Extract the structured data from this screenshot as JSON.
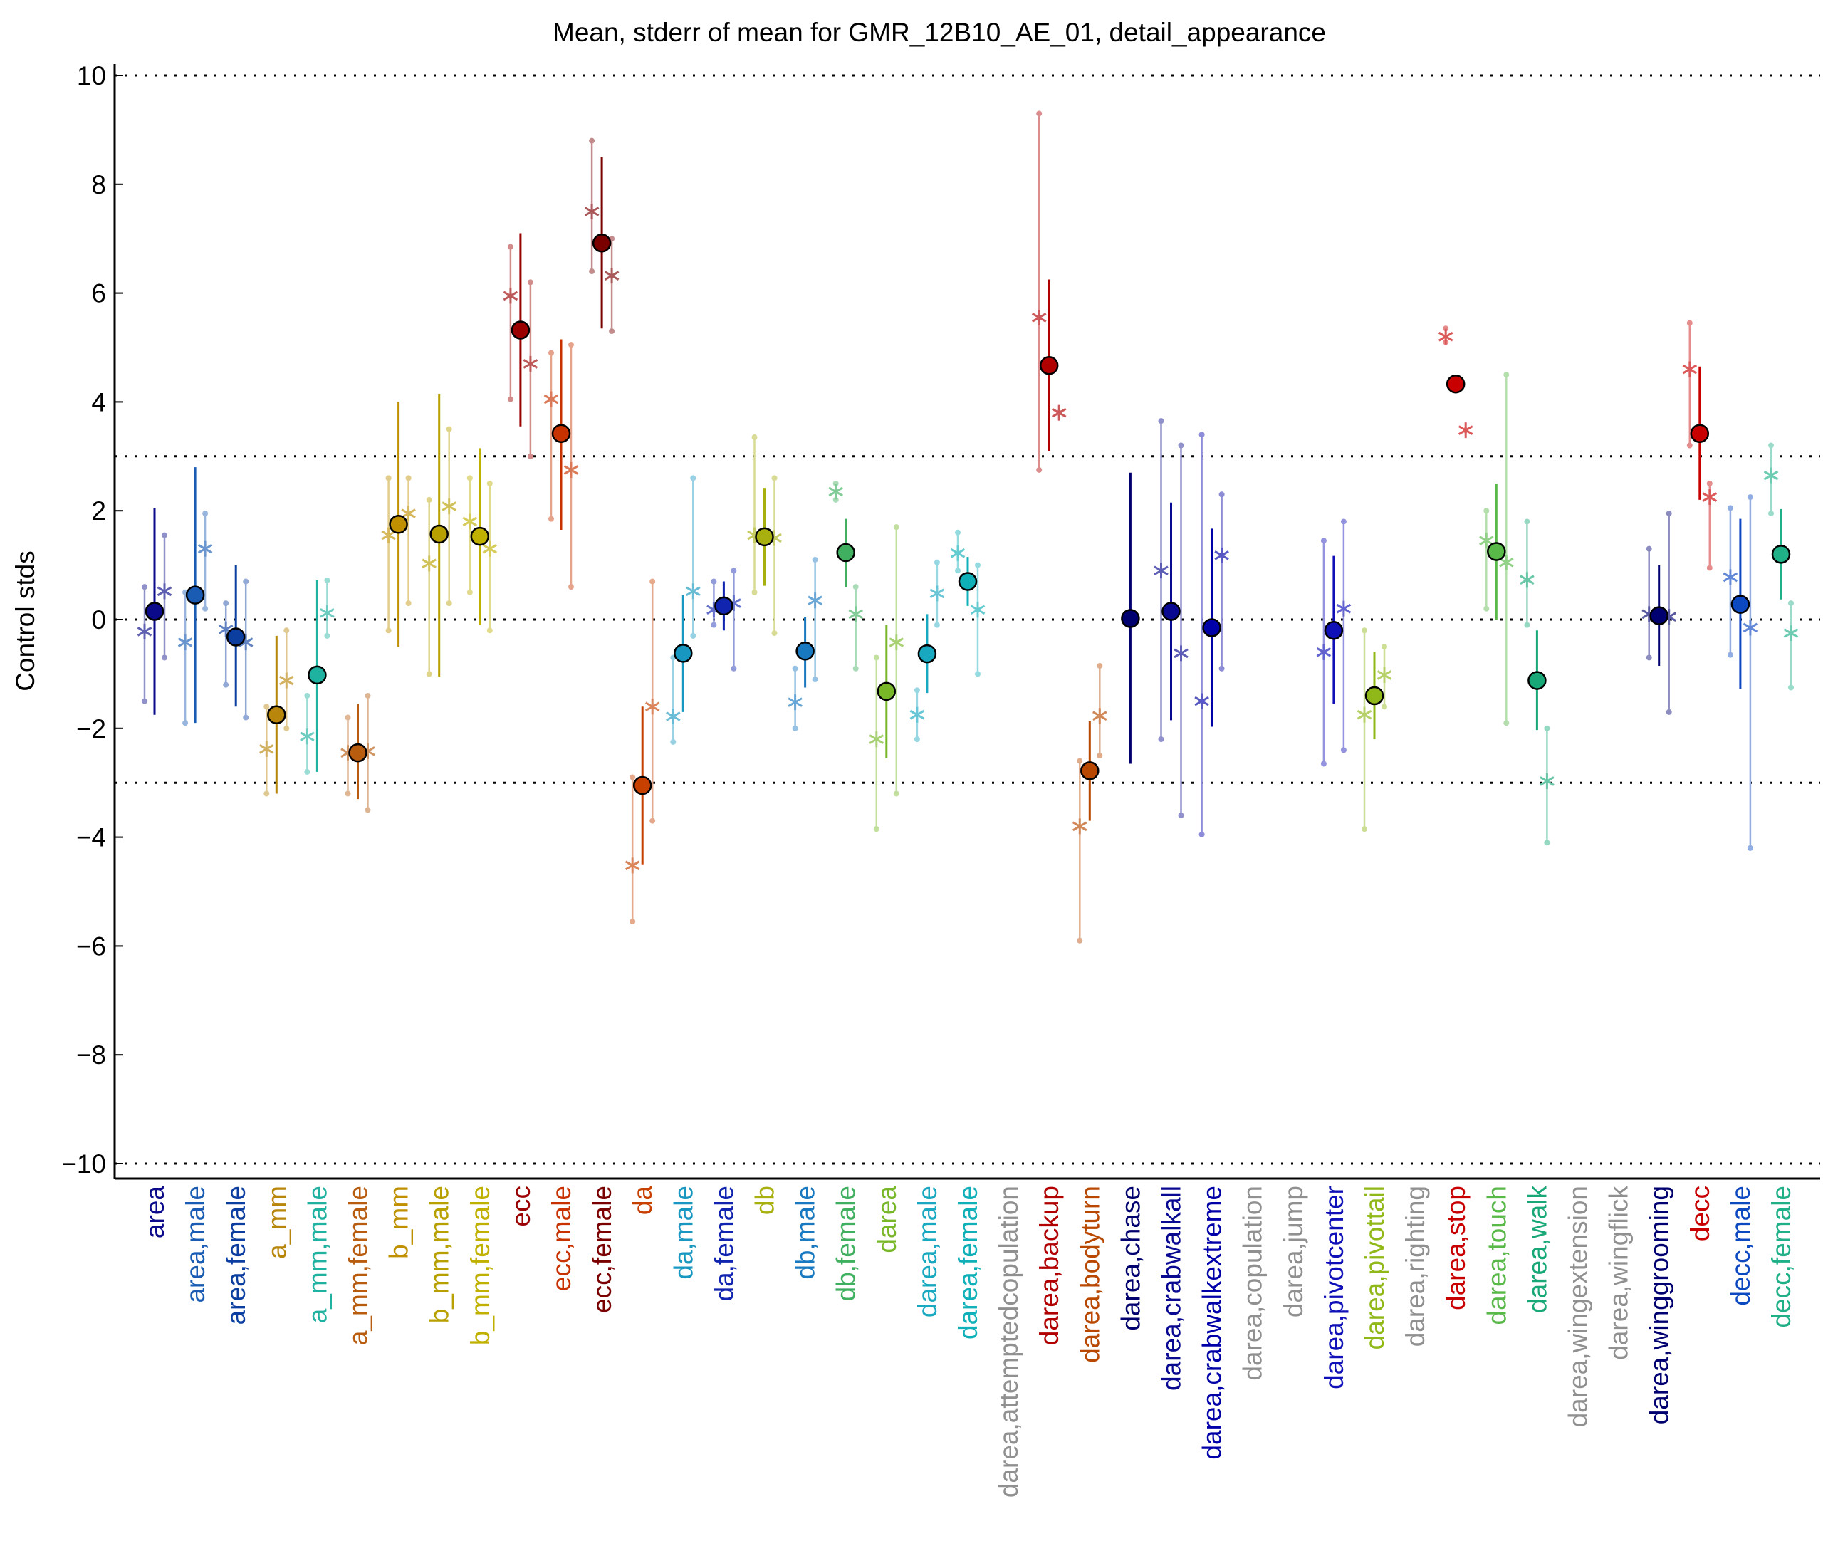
{
  "chart_data": {
    "type": "scatter",
    "title": "Mean, stderr of mean for GMR_12B10_AE_01, detail_appearance",
    "ylabel": "Control stds",
    "xlabel": "",
    "ylim": [
      -10.3,
      10.3
    ],
    "yticks": [
      10,
      8,
      6,
      4,
      2,
      0,
      -2,
      -4,
      -6,
      -8,
      -10
    ],
    "ytick_labels": [
      "10",
      "8",
      "6",
      "4",
      "2",
      "0",
      "−2",
      "−4",
      "−6",
      "−8",
      "−10"
    ],
    "reference_lines": [
      10,
      3,
      0,
      -3,
      -10
    ],
    "grid": false,
    "categories": [
      {
        "label": "area",
        "color": "#0a0a8a",
        "mean": 0.15,
        "lo": -1.75,
        "hi": 2.05,
        "subs": [
          {
            "v": -0.22,
            "lo": -1.5,
            "hi": 0.6
          },
          {
            "v": 0.52,
            "lo": -0.7,
            "hi": 1.55
          }
        ]
      },
      {
        "label": "area,male",
        "color": "#1a5cb4",
        "mean": 0.45,
        "lo": -1.9,
        "hi": 2.8,
        "subs": [
          {
            "v": -0.42,
            "lo": -1.9,
            "hi": 0.5
          },
          {
            "v": 1.3,
            "lo": 0.2,
            "hi": 1.95
          }
        ]
      },
      {
        "label": "area,female",
        "color": "#0c3ea0",
        "mean": -0.32,
        "lo": -1.6,
        "hi": 1.0,
        "subs": [
          {
            "v": -0.18,
            "lo": -1.2,
            "hi": 0.3
          },
          {
            "v": -0.42,
            "lo": -1.8,
            "hi": 0.7
          }
        ]
      },
      {
        "label": "a_mm",
        "color": "#b8860b",
        "mean": -1.75,
        "lo": -3.2,
        "hi": -0.3,
        "subs": [
          {
            "v": -2.38,
            "lo": -3.2,
            "hi": -1.6
          },
          {
            "v": -1.12,
            "lo": -2.0,
            "hi": -0.2
          }
        ]
      },
      {
        "label": "a_mm,male",
        "color": "#20b2a0",
        "mean": -1.02,
        "lo": -2.8,
        "hi": 0.72,
        "subs": [
          {
            "v": -2.15,
            "lo": -2.8,
            "hi": -1.4
          },
          {
            "v": 0.12,
            "lo": -0.3,
            "hi": 0.72
          }
        ]
      },
      {
        "label": "a_mm,female",
        "color": "#b85c10",
        "mean": -2.45,
        "lo": -3.3,
        "hi": -1.55,
        "subs": [
          {
            "v": -2.45,
            "lo": -3.2,
            "hi": -1.8
          },
          {
            "v": -2.42,
            "lo": -3.5,
            "hi": -1.4
          }
        ]
      },
      {
        "label": "b_mm",
        "color": "#c09000",
        "mean": 1.75,
        "lo": -0.5,
        "hi": 4.0,
        "subs": [
          {
            "v": 1.55,
            "lo": -0.2,
            "hi": 2.6
          },
          {
            "v": 1.95,
            "lo": 0.3,
            "hi": 2.6
          }
        ]
      },
      {
        "label": "b_mm,male",
        "color": "#b8a000",
        "mean": 1.57,
        "lo": -1.05,
        "hi": 4.15,
        "subs": [
          {
            "v": 1.03,
            "lo": -1.0,
            "hi": 2.2
          },
          {
            "v": 2.08,
            "lo": 0.3,
            "hi": 3.5
          }
        ]
      },
      {
        "label": "b_mm,female",
        "color": "#c0b000",
        "mean": 1.53,
        "lo": -0.1,
        "hi": 3.15,
        "subs": [
          {
            "v": 1.8,
            "lo": 0.5,
            "hi": 2.6
          },
          {
            "v": 1.3,
            "lo": -0.2,
            "hi": 2.5
          }
        ]
      },
      {
        "label": "ecc",
        "color": "#9a0000",
        "mean": 5.32,
        "lo": 3.55,
        "hi": 7.1,
        "subs": [
          {
            "v": 5.95,
            "lo": 4.05,
            "hi": 6.85
          },
          {
            "v": 4.7,
            "lo": 3.0,
            "hi": 6.2
          }
        ]
      },
      {
        "label": "ecc,male",
        "color": "#c83200",
        "mean": 3.42,
        "lo": 1.65,
        "hi": 5.15,
        "subs": [
          {
            "v": 4.05,
            "lo": 1.85,
            "hi": 4.9
          },
          {
            "v": 2.75,
            "lo": 0.6,
            "hi": 5.05
          }
        ]
      },
      {
        "label": "ecc,female",
        "color": "#7a0000",
        "mean": 6.92,
        "lo": 5.35,
        "hi": 8.5,
        "subs": [
          {
            "v": 7.5,
            "lo": 6.4,
            "hi": 8.8
          },
          {
            "v": 6.32,
            "lo": 5.3,
            "hi": 7.0
          }
        ]
      },
      {
        "label": "da",
        "color": "#c84000",
        "mean": -3.05,
        "lo": -4.5,
        "hi": -1.6,
        "subs": [
          {
            "v": -4.52,
            "lo": -5.55,
            "hi": -2.9
          },
          {
            "v": -1.6,
            "lo": -3.7,
            "hi": 0.7
          }
        ]
      },
      {
        "label": "da,male",
        "color": "#1898c0",
        "mean": -0.62,
        "lo": -1.7,
        "hi": 0.45,
        "subs": [
          {
            "v": -1.78,
            "lo": -2.25,
            "hi": -0.7
          },
          {
            "v": 0.52,
            "lo": -0.3,
            "hi": 2.6
          }
        ]
      },
      {
        "label": "da,female",
        "color": "#1024b0",
        "mean": 0.25,
        "lo": -0.2,
        "hi": 0.7,
        "subs": [
          {
            "v": 0.18,
            "lo": -0.1,
            "hi": 0.7
          },
          {
            "v": 0.3,
            "lo": -0.9,
            "hi": 0.9
          }
        ]
      },
      {
        "label": "db",
        "color": "#a8b010",
        "mean": 1.52,
        "lo": 0.62,
        "hi": 2.42,
        "subs": [
          {
            "v": 1.55,
            "lo": 0.5,
            "hi": 3.35
          },
          {
            "v": 1.5,
            "lo": -0.25,
            "hi": 2.6
          }
        ]
      },
      {
        "label": "db,male",
        "color": "#1878c0",
        "mean": -0.58,
        "lo": -1.25,
        "hi": 0.05,
        "subs": [
          {
            "v": -1.52,
            "lo": -2.0,
            "hi": -0.9
          },
          {
            "v": 0.35,
            "lo": -1.1,
            "hi": 1.1
          }
        ]
      },
      {
        "label": "db,female",
        "color": "#40b060",
        "mean": 1.23,
        "lo": 0.6,
        "hi": 1.85,
        "subs": [
          {
            "v": 2.35,
            "lo": 2.2,
            "hi": 2.5
          },
          {
            "v": 0.1,
            "lo": -0.9,
            "hi": 0.6
          }
        ]
      },
      {
        "label": "darea",
        "color": "#78b828",
        "mean": -1.32,
        "lo": -2.55,
        "hi": -0.1,
        "subs": [
          {
            "v": -2.2,
            "lo": -3.85,
            "hi": -0.7
          },
          {
            "v": -0.42,
            "lo": -3.2,
            "hi": 1.7
          }
        ]
      },
      {
        "label": "darea,male",
        "color": "#18a8c0",
        "mean": -0.63,
        "lo": -1.35,
        "hi": 0.1,
        "subs": [
          {
            "v": -1.75,
            "lo": -2.2,
            "hi": -1.3
          },
          {
            "v": 0.48,
            "lo": -0.1,
            "hi": 1.05
          }
        ]
      },
      {
        "label": "darea,female",
        "color": "#10b0b8",
        "mean": 0.7,
        "lo": 0.25,
        "hi": 1.15,
        "subs": [
          {
            "v": 1.22,
            "lo": 0.9,
            "hi": 1.6
          },
          {
            "v": 0.18,
            "lo": -1.0,
            "hi": 1.0
          }
        ]
      },
      {
        "label": "darea,attemptedcopulation",
        "color": "#909090",
        "mean": null,
        "lo": null,
        "hi": null,
        "subs": []
      },
      {
        "label": "darea,backup",
        "color": "#b00000",
        "mean": 4.67,
        "lo": 3.1,
        "hi": 6.25,
        "subs": [
          {
            "v": 5.55,
            "lo": 2.75,
            "hi": 9.3
          },
          {
            "v": 3.8,
            "lo": 3.8,
            "hi": 3.8
          }
        ]
      },
      {
        "label": "darea,bodyturn",
        "color": "#b84800",
        "mean": -2.78,
        "lo": -3.7,
        "hi": -1.87,
        "subs": [
          {
            "v": -3.8,
            "lo": -5.9,
            "hi": -2.6
          },
          {
            "v": -1.77,
            "lo": -2.5,
            "hi": -0.85
          }
        ]
      },
      {
        "label": "darea,chase",
        "color": "#00006e",
        "mean": 0.02,
        "lo": -2.65,
        "hi": 2.7,
        "subs": []
      },
      {
        "label": "darea,crabwalkall",
        "color": "#080890",
        "mean": 0.15,
        "lo": -1.85,
        "hi": 2.15,
        "subs": [
          {
            "v": 0.9,
            "lo": -2.2,
            "hi": 3.65
          },
          {
            "v": -0.62,
            "lo": -3.6,
            "hi": 3.2
          }
        ]
      },
      {
        "label": "darea,crabwalkextreme",
        "color": "#0000a8",
        "mean": -0.15,
        "lo": -1.97,
        "hi": 1.67,
        "subs": [
          {
            "v": -1.5,
            "lo": -3.95,
            "hi": 3.4
          },
          {
            "v": 1.18,
            "lo": -0.9,
            "hi": 2.3
          }
        ]
      },
      {
        "label": "darea,copulation",
        "color": "#909090",
        "mean": null,
        "lo": null,
        "hi": null,
        "subs": []
      },
      {
        "label": "darea,jump",
        "color": "#909090",
        "mean": null,
        "lo": null,
        "hi": null,
        "subs": []
      },
      {
        "label": "darea,pivotcenter",
        "color": "#1010b8",
        "mean": -0.2,
        "lo": -1.55,
        "hi": 1.17,
        "subs": [
          {
            "v": -0.6,
            "lo": -2.65,
            "hi": 1.45
          },
          {
            "v": 0.2,
            "lo": -2.4,
            "hi": 1.8
          }
        ]
      },
      {
        "label": "darea,pivottail",
        "color": "#90b818",
        "mean": -1.4,
        "lo": -2.2,
        "hi": -0.6,
        "subs": [
          {
            "v": -1.75,
            "lo": -3.85,
            "hi": -0.2
          },
          {
            "v": -1.02,
            "lo": -1.6,
            "hi": -0.5
          }
        ]
      },
      {
        "label": "darea,righting",
        "color": "#909090",
        "mean": null,
        "lo": null,
        "hi": null,
        "subs": []
      },
      {
        "label": "darea,stop",
        "color": "#c80000",
        "mean": 4.33,
        "lo": 4.33,
        "hi": 4.33,
        "subs": [
          {
            "v": 5.2,
            "lo": 5.1,
            "hi": 5.35
          },
          {
            "v": 3.48,
            "lo": 3.48,
            "hi": 3.48
          }
        ]
      },
      {
        "label": "darea,touch",
        "color": "#58b848",
        "mean": 1.25,
        "lo": 0.0,
        "hi": 2.5,
        "subs": [
          {
            "v": 1.45,
            "lo": 0.2,
            "hi": 2.0
          },
          {
            "v": 1.05,
            "lo": -1.9,
            "hi": 4.5
          }
        ]
      },
      {
        "label": "darea,walk",
        "color": "#18a878",
        "mean": -1.12,
        "lo": -2.03,
        "hi": -0.2,
        "subs": [
          {
            "v": 0.73,
            "lo": -0.1,
            "hi": 1.8
          },
          {
            "v": -2.97,
            "lo": -4.1,
            "hi": -2.0
          }
        ]
      },
      {
        "label": "darea,wingextension",
        "color": "#909090",
        "mean": null,
        "lo": null,
        "hi": null,
        "subs": []
      },
      {
        "label": "darea,wingflick",
        "color": "#909090",
        "mean": null,
        "lo": null,
        "hi": null,
        "subs": []
      },
      {
        "label": "darea,winggrooming",
        "color": "#000070",
        "mean": 0.07,
        "lo": -0.85,
        "hi": 1.0,
        "subs": [
          {
            "v": 0.1,
            "lo": -0.7,
            "hi": 1.3
          },
          {
            "v": 0.05,
            "lo": -1.7,
            "hi": 1.95
          }
        ]
      },
      {
        "label": "decc",
        "color": "#c80000",
        "mean": 3.42,
        "lo": 2.2,
        "hi": 4.65,
        "subs": [
          {
            "v": 4.6,
            "lo": 3.2,
            "hi": 5.45
          },
          {
            "v": 2.25,
            "lo": 0.95,
            "hi": 2.5
          }
        ]
      },
      {
        "label": "decc,male",
        "color": "#0c48c0",
        "mean": 0.28,
        "lo": -1.28,
        "hi": 1.85,
        "subs": [
          {
            "v": 0.78,
            "lo": -0.65,
            "hi": 2.05
          },
          {
            "v": -0.15,
            "lo": -4.2,
            "hi": 2.25
          }
        ]
      },
      {
        "label": "decc,female",
        "color": "#20b088",
        "mean": 1.2,
        "lo": 0.37,
        "hi": 2.03,
        "subs": [
          {
            "v": 2.65,
            "lo": 1.95,
            "hi": 3.2
          },
          {
            "v": -0.25,
            "lo": -1.25,
            "hi": 0.3
          }
        ]
      }
    ]
  }
}
